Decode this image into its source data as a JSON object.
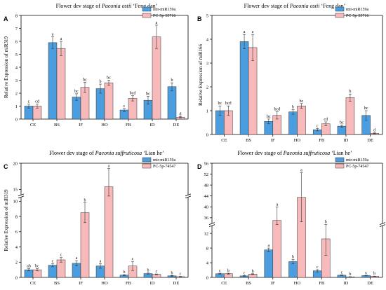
{
  "chart_data": [
    {
      "id": "A",
      "type": "bar",
      "panel_letter": "A",
      "title_prefix": "Flower dev stage of ",
      "title_species": "Paeonia ostii",
      "title_suffix": " ‘Feng dan’",
      "ylabel": "Relative Expression of miR319",
      "xlabel": "",
      "categories": [
        "CE",
        "BS",
        "IF",
        "HO",
        "FB",
        "ID",
        "DE"
      ],
      "ylim": [
        0,
        8
      ],
      "yticks": [
        0,
        1,
        2,
        3,
        4,
        5,
        6,
        7,
        8
      ],
      "legend_position": "top-right",
      "series": [
        {
          "name": "mtr-miR159a",
          "color": "#4a9ee0",
          "values": [
            1.0,
            5.9,
            1.7,
            2.35,
            0.7,
            1.45,
            2.5
          ],
          "errors": [
            0.15,
            0.45,
            0.25,
            0.35,
            0.12,
            0.3,
            0.3
          ],
          "labels": [
            "c",
            "a",
            "bc",
            "b",
            "c",
            "bc",
            "b"
          ]
        },
        {
          "name": "PC-5p-55716",
          "color": "#f7b9b9",
          "values": [
            1.0,
            5.45,
            2.45,
            2.8,
            1.6,
            6.35,
            0.15
          ],
          "errors": [
            0.15,
            0.55,
            0.4,
            0.2,
            0.2,
            0.9,
            0.05
          ],
          "labels": [
            "cd",
            "a",
            "bc",
            "bc",
            "bcd",
            "a",
            "d"
          ]
        }
      ]
    },
    {
      "id": "B",
      "type": "bar",
      "panel_letter": "B",
      "title_prefix": "Flower dev stage of ",
      "title_species": "Paeonia ostii",
      "title_suffix": " ‘Feng dan’",
      "ylabel": "Relative Expression of miR166",
      "xlabel": "",
      "categories": [
        "CE",
        "BS",
        "IF",
        "HO",
        "FB",
        "ID",
        "DE"
      ],
      "ylim": [
        0,
        5
      ],
      "yticks": [
        0,
        1,
        2,
        3,
        4,
        5
      ],
      "legend_position": "top-right",
      "series": [
        {
          "name": "mtr-miR159a",
          "color": "#4a9ee0",
          "values": [
            1.0,
            3.9,
            0.55,
            0.95,
            0.2,
            0.35,
            0.8
          ],
          "errors": [
            0.2,
            0.3,
            0.1,
            0.1,
            0.05,
            0.05,
            0.2
          ],
          "labels": [
            "bc",
            "a",
            "bc",
            "b",
            "c",
            "bc",
            "bc"
          ]
        },
        {
          "name": "PC-5p-55716",
          "color": "#f7b9b9",
          "values": [
            1.0,
            3.65,
            0.8,
            1.2,
            0.45,
            1.55,
            0.05
          ],
          "errors": [
            0.2,
            0.55,
            0.15,
            0.1,
            0.08,
            0.15,
            0.02
          ],
          "labels": [
            "bcd",
            "a",
            "bcd",
            "bc",
            "cd",
            "b",
            "d"
          ]
        }
      ]
    },
    {
      "id": "C",
      "type": "bar",
      "panel_letter": "C",
      "title_prefix": "Flower dev stage of ",
      "title_species": "Paeonia suffruticosa",
      "title_suffix": " ‘Lian he’",
      "ylabel": "Relative Expression of miR319",
      "xlabel": "",
      "categories": [
        "CE",
        "BS",
        "IF",
        "HO",
        "FB",
        "ID",
        "DE"
      ],
      "yticks_lower": [
        0,
        2,
        4,
        6,
        8,
        10
      ],
      "yticks_upper": [
        15,
        20
      ],
      "break": [
        10.5,
        14
      ],
      "legend_position": "top-right",
      "series": [
        {
          "name": "mtr-miR159a",
          "color": "#4a9ee0",
          "values": [
            1.0,
            1.6,
            1.85,
            1.5,
            0.3,
            0.5,
            0.2
          ],
          "errors": [
            0.15,
            0.2,
            0.35,
            0.3,
            0.05,
            0.08,
            0.05
          ],
          "labels": [
            "ab",
            "c",
            "a",
            "a",
            "b",
            "b",
            "b"
          ]
        },
        {
          "name": "PC-5p-74547",
          "color": "#f7b9b9",
          "values": [
            1.0,
            2.3,
            8.5,
            15.5,
            1.5,
            0.4,
            0.1
          ],
          "errors": [
            0.15,
            0.3,
            1.3,
            3.5,
            0.6,
            0.05,
            0.03
          ],
          "labels": [
            "bc",
            "c",
            "b",
            "a",
            "c",
            "c",
            "c"
          ]
        }
      ]
    },
    {
      "id": "D",
      "type": "bar",
      "panel_letter": "D",
      "title_prefix": "Flower dev stage of ",
      "title_species": "Paeonia suffruticosa",
      "title_suffix": " ‘Lian he’",
      "ylabel": "",
      "xlabel": "",
      "categories": [
        "CE",
        "BS",
        "IF",
        "HO",
        "FB",
        "ID",
        "DE"
      ],
      "yticks_lower": [
        0,
        4,
        8,
        12
      ],
      "yticks_upper": [
        36,
        40,
        44,
        48,
        52,
        56
      ],
      "break": [
        14,
        34
      ],
      "legend_position": "top-right",
      "series": [
        {
          "name": "mtr-miR159a",
          "color": "#4a9ee0",
          "values": [
            1.0,
            0.4,
            7.5,
            4.3,
            1.8,
            0.6,
            0.5
          ],
          "errors": [
            0.15,
            0.1,
            0.5,
            0.6,
            0.3,
            0.1,
            0.1
          ],
          "labels": [
            "c",
            "c",
            "a",
            "b",
            "c",
            "c",
            "c"
          ]
        },
        {
          "name": "PC-5p-74547",
          "color": "#f7b9b9",
          "values": [
            1.0,
            0.9,
            35.0,
            43.5,
            10.5,
            0.15,
            0.3
          ],
          "errors": [
            0.15,
            0.1,
            5.0,
            9.0,
            4.5,
            0.05,
            0.05
          ],
          "labels": [
            "b",
            "b",
            "a",
            "a",
            "b",
            "b",
            "b"
          ]
        }
      ]
    }
  ]
}
